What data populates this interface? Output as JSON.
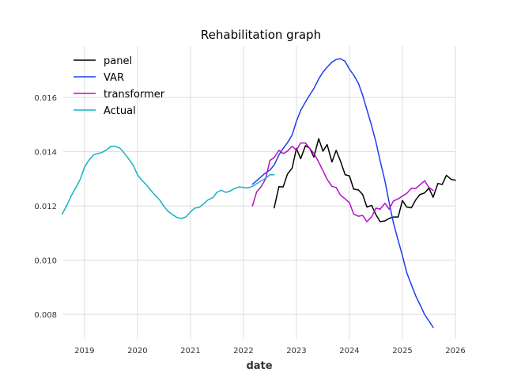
{
  "chart_data": {
    "type": "line",
    "title": "Rehabilitation graph",
    "xlabel": "date",
    "ylabel": "",
    "xlim": [
      2018.6,
      2026.0
    ],
    "ylim": [
      0.0071,
      0.0179
    ],
    "grid": true,
    "legend_position": "top-left",
    "x_ticks": [
      2019,
      2020,
      2021,
      2022,
      2023,
      2024,
      2025,
      2026
    ],
    "x_tick_labels": [
      "2019",
      "2020",
      "2021",
      "2022",
      "2023",
      "2024",
      "2025",
      "2026"
    ],
    "y_ticks": [
      0.008,
      0.01,
      0.012,
      0.014,
      0.016
    ],
    "y_tick_labels": [
      "0.008",
      "0.010",
      "0.012",
      "0.014",
      "0.016"
    ],
    "series": [
      {
        "name": "panel",
        "color": "#000000",
        "points": [
          [
            2022.58,
            0.01193
          ],
          [
            2022.67,
            0.01271
          ],
          [
            2022.75,
            0.0127
          ],
          [
            2022.83,
            0.01317
          ],
          [
            2022.92,
            0.0134
          ],
          [
            2023.0,
            0.01412
          ],
          [
            2023.08,
            0.01374
          ],
          [
            2023.17,
            0.01422
          ],
          [
            2023.25,
            0.01413
          ],
          [
            2023.33,
            0.0138
          ],
          [
            2023.42,
            0.01448
          ],
          [
            2023.5,
            0.01402
          ],
          [
            2023.58,
            0.01426
          ],
          [
            2023.67,
            0.01362
          ],
          [
            2023.75,
            0.01405
          ],
          [
            2023.83,
            0.01366
          ],
          [
            2023.92,
            0.01315
          ],
          [
            2024.0,
            0.01311
          ],
          [
            2024.08,
            0.01262
          ],
          [
            2024.17,
            0.01259
          ],
          [
            2024.25,
            0.01242
          ],
          [
            2024.33,
            0.01196
          ],
          [
            2024.42,
            0.01202
          ],
          [
            2024.5,
            0.01168
          ],
          [
            2024.58,
            0.01142
          ],
          [
            2024.67,
            0.01145
          ],
          [
            2024.75,
            0.01154
          ],
          [
            2024.83,
            0.01159
          ],
          [
            2024.92,
            0.01159
          ],
          [
            2025.0,
            0.0122
          ],
          [
            2025.08,
            0.01196
          ],
          [
            2025.17,
            0.01193
          ],
          [
            2025.25,
            0.01222
          ],
          [
            2025.33,
            0.01242
          ],
          [
            2025.42,
            0.01248
          ],
          [
            2025.5,
            0.01266
          ],
          [
            2025.58,
            0.01232
          ],
          [
            2025.67,
            0.01283
          ],
          [
            2025.75,
            0.01279
          ],
          [
            2025.83,
            0.01313
          ],
          [
            2025.92,
            0.01298
          ],
          [
            2026.0,
            0.01295
          ]
        ]
      },
      {
        "name": "VAR",
        "color": "#1f3df0",
        "points": [
          [
            2022.17,
            0.0128
          ],
          [
            2022.25,
            0.01293
          ],
          [
            2022.33,
            0.01307
          ],
          [
            2022.42,
            0.01322
          ],
          [
            2022.5,
            0.01332
          ],
          [
            2022.58,
            0.01351
          ],
          [
            2022.67,
            0.01388
          ],
          [
            2022.75,
            0.01412
          ],
          [
            2022.83,
            0.01433
          ],
          [
            2022.92,
            0.01462
          ],
          [
            2023.0,
            0.01512
          ],
          [
            2023.08,
            0.01552
          ],
          [
            2023.17,
            0.01583
          ],
          [
            2023.25,
            0.01609
          ],
          [
            2023.33,
            0.01633
          ],
          [
            2023.42,
            0.01668
          ],
          [
            2023.5,
            0.01693
          ],
          [
            2023.58,
            0.01712
          ],
          [
            2023.67,
            0.0173
          ],
          [
            2023.75,
            0.0174
          ],
          [
            2023.83,
            0.01743
          ],
          [
            2023.92,
            0.01733
          ],
          [
            2024.0,
            0.01704
          ],
          [
            2024.08,
            0.01683
          ],
          [
            2024.17,
            0.01652
          ],
          [
            2024.25,
            0.01608
          ],
          [
            2024.33,
            0.01555
          ],
          [
            2024.42,
            0.01495
          ],
          [
            2024.5,
            0.01436
          ],
          [
            2024.58,
            0.01366
          ],
          [
            2024.67,
            0.01293
          ],
          [
            2024.75,
            0.01212
          ],
          [
            2024.83,
            0.01138
          ],
          [
            2024.92,
            0.01073
          ],
          [
            2025.0,
            0.01017
          ],
          [
            2025.08,
            0.00955
          ],
          [
            2025.17,
            0.00909
          ],
          [
            2025.25,
            0.00869
          ],
          [
            2025.33,
            0.00837
          ],
          [
            2025.42,
            0.00799
          ],
          [
            2025.5,
            0.00776
          ],
          [
            2025.58,
            0.00752
          ]
        ]
      },
      {
        "name": "transformer",
        "color": "#b012c4",
        "points": [
          [
            2022.17,
            0.012
          ],
          [
            2022.25,
            0.01252
          ],
          [
            2022.33,
            0.0127
          ],
          [
            2022.42,
            0.013
          ],
          [
            2022.5,
            0.01368
          ],
          [
            2022.58,
            0.01378
          ],
          [
            2022.67,
            0.01405
          ],
          [
            2022.75,
            0.01393
          ],
          [
            2022.83,
            0.01402
          ],
          [
            2022.92,
            0.0142
          ],
          [
            2023.0,
            0.01406
          ],
          [
            2023.08,
            0.01432
          ],
          [
            2023.17,
            0.01432
          ],
          [
            2023.25,
            0.01412
          ],
          [
            2023.33,
            0.01394
          ],
          [
            2023.42,
            0.01362
          ],
          [
            2023.5,
            0.0133
          ],
          [
            2023.58,
            0.01298
          ],
          [
            2023.67,
            0.01272
          ],
          [
            2023.75,
            0.01268
          ],
          [
            2023.83,
            0.0124
          ],
          [
            2023.92,
            0.01226
          ],
          [
            2024.0,
            0.01212
          ],
          [
            2024.08,
            0.0117
          ],
          [
            2024.17,
            0.01162
          ],
          [
            2024.25,
            0.01165
          ],
          [
            2024.33,
            0.01142
          ],
          [
            2024.42,
            0.0116
          ],
          [
            2024.5,
            0.01192
          ],
          [
            2024.58,
            0.01188
          ],
          [
            2024.67,
            0.0121
          ],
          [
            2024.75,
            0.01188
          ],
          [
            2024.83,
            0.01218
          ],
          [
            2024.92,
            0.01226
          ],
          [
            2025.0,
            0.01236
          ],
          [
            2025.08,
            0.01246
          ],
          [
            2025.17,
            0.01265
          ],
          [
            2025.25,
            0.01264
          ],
          [
            2025.33,
            0.01278
          ],
          [
            2025.42,
            0.01293
          ],
          [
            2025.5,
            0.01268
          ],
          [
            2025.58,
            0.01257
          ]
        ]
      },
      {
        "name": "Actual",
        "color": "#17b2be",
        "points": [
          [
            2018.58,
            0.0117
          ],
          [
            2018.67,
            0.01203
          ],
          [
            2018.75,
            0.01237
          ],
          [
            2018.83,
            0.01265
          ],
          [
            2018.92,
            0.01298
          ],
          [
            2019.0,
            0.01342
          ],
          [
            2019.08,
            0.01368
          ],
          [
            2019.17,
            0.01388
          ],
          [
            2019.25,
            0.01393
          ],
          [
            2019.33,
            0.01397
          ],
          [
            2019.42,
            0.01407
          ],
          [
            2019.5,
            0.0142
          ],
          [
            2019.58,
            0.0142
          ],
          [
            2019.67,
            0.01413
          ],
          [
            2019.75,
            0.01395
          ],
          [
            2019.83,
            0.01375
          ],
          [
            2019.92,
            0.0135
          ],
          [
            2020.0,
            0.01315
          ],
          [
            2020.08,
            0.01295
          ],
          [
            2020.17,
            0.01278
          ],
          [
            2020.25,
            0.01258
          ],
          [
            2020.33,
            0.0124
          ],
          [
            2020.42,
            0.01222
          ],
          [
            2020.5,
            0.01198
          ],
          [
            2020.58,
            0.0118
          ],
          [
            2020.67,
            0.01167
          ],
          [
            2020.75,
            0.01157
          ],
          [
            2020.83,
            0.01154
          ],
          [
            2020.92,
            0.0116
          ],
          [
            2021.0,
            0.01178
          ],
          [
            2021.08,
            0.01192
          ],
          [
            2021.17,
            0.01195
          ],
          [
            2021.25,
            0.01208
          ],
          [
            2021.33,
            0.01222
          ],
          [
            2021.42,
            0.0123
          ],
          [
            2021.5,
            0.0125
          ],
          [
            2021.58,
            0.01258
          ],
          [
            2021.67,
            0.0125
          ],
          [
            2021.75,
            0.01255
          ],
          [
            2021.83,
            0.01264
          ],
          [
            2021.92,
            0.0127
          ],
          [
            2022.0,
            0.01268
          ],
          [
            2022.08,
            0.01266
          ],
          [
            2022.17,
            0.01272
          ],
          [
            2022.25,
            0.01282
          ],
          [
            2022.33,
            0.01292
          ],
          [
            2022.42,
            0.01302
          ],
          [
            2022.5,
            0.01315
          ],
          [
            2022.58,
            0.01315
          ]
        ]
      }
    ]
  }
}
